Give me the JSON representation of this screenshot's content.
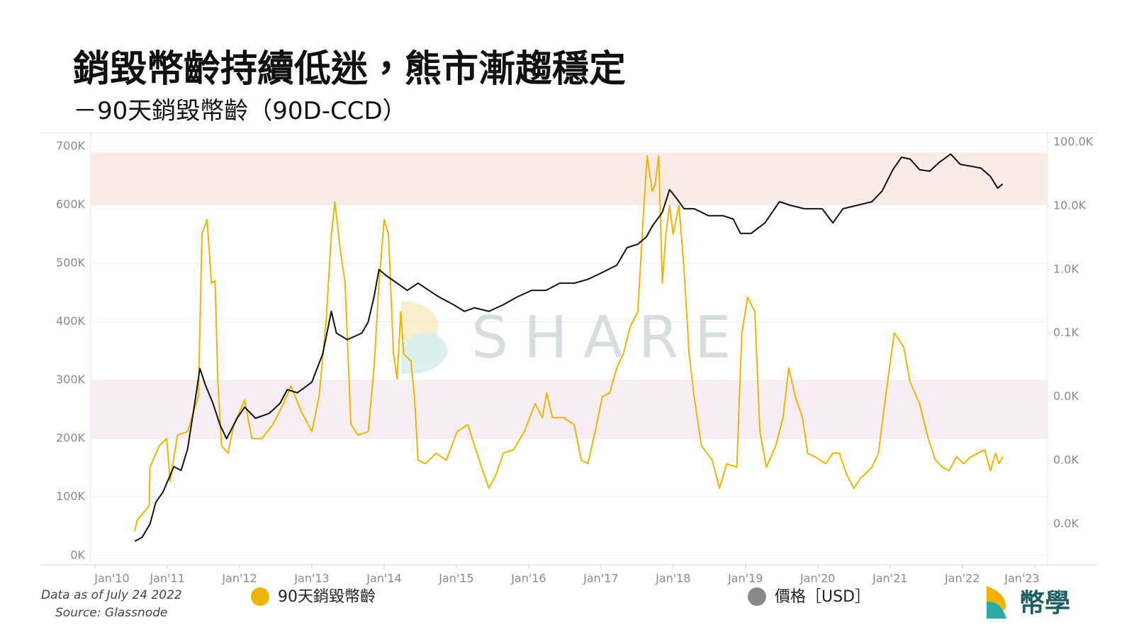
{
  "title": "銷毀幣齡持續低迷，熊市漸趨穩定",
  "subtitle": "－90天銷毀幣齡（90D-CCD）",
  "footnote": "Data as of July 24 2022",
  "source": "Source: Glassnode",
  "watermark": "SHARE",
  "logo": "幣學",
  "chart_data": {
    "type": "line",
    "xlim": [
      2009.94,
      2023.18
    ],
    "xticks": [
      {
        "value": 2010,
        "label": "Jan'10"
      },
      {
        "value": 2011,
        "label": "Jan'11"
      },
      {
        "value": 2012,
        "label": "Jan'12"
      },
      {
        "value": 2013,
        "label": "Jan'13"
      },
      {
        "value": 2014,
        "label": "Jan'14"
      },
      {
        "value": 2015,
        "label": "Jan'15"
      },
      {
        "value": 2016,
        "label": "Jan'16"
      },
      {
        "value": 2017,
        "label": "Jan'17"
      },
      {
        "value": 2018,
        "label": "Jan'18"
      },
      {
        "value": 2019,
        "label": "Jan'19"
      },
      {
        "value": 2020,
        "label": "Jan'20"
      },
      {
        "value": 2021,
        "label": "Jan'21"
      },
      {
        "value": 2022,
        "label": "Jan'22"
      },
      {
        "value": 2023,
        "label": "Jan'23"
      }
    ],
    "ylim": [
      -16000,
      723000
    ],
    "yticks": [
      {
        "value": 0,
        "label": "0K"
      },
      {
        "value": 100000,
        "label": "100K"
      },
      {
        "value": 200000,
        "label": "200K"
      },
      {
        "value": 300000,
        "label": "300K"
      },
      {
        "value": 400000,
        "label": "400K"
      },
      {
        "value": 500000,
        "label": "500K"
      },
      {
        "value": 600000,
        "label": "600K"
      },
      {
        "value": 700000,
        "label": "700K"
      }
    ],
    "y2lim": [
      0.023,
      139000
    ],
    "y2scale": "log",
    "y2ticks": [
      {
        "value": 100000,
        "label": "100.0K"
      },
      {
        "value": 10000,
        "label": "10.0K"
      },
      {
        "value": 1000,
        "label": "1.0K"
      },
      {
        "value": 100,
        "label": "0.1K"
      },
      {
        "value": 10,
        "label": "0.0K"
      },
      {
        "value": 1,
        "label": "0.0K"
      },
      {
        "value": 0.1,
        "label": "0.0K"
      }
    ],
    "grid": true,
    "bands": [
      {
        "from": 200000,
        "to": 300000,
        "color": "#f6eef3"
      },
      {
        "from": 600000,
        "to": 690000,
        "color": "#f9ece6"
      }
    ],
    "series": [
      {
        "name": "90天銷毀幣齡",
        "color": "#f0b400",
        "legend_marker_color": "#f0b400",
        "x": [
          2010.55,
          2010.58,
          2010.75,
          2010.76,
          2010.89,
          2010.99,
          2011.04,
          2011.14,
          2011.28,
          2011.43,
          2011.48,
          2011.55,
          2011.61,
          2011.66,
          2011.7,
          2011.75,
          2011.84,
          2011.92,
          2012.07,
          2012.17,
          2012.31,
          2012.46,
          2012.61,
          2012.71,
          2012.85,
          2013.0,
          2013.1,
          2013.2,
          2013.27,
          2013.32,
          2013.39,
          2013.46,
          2013.54,
          2013.64,
          2013.78,
          2013.86,
          2013.93,
          2014.0,
          2014.06,
          2014.13,
          2014.18,
          2014.23,
          2014.27,
          2014.37,
          2014.42,
          2014.47,
          2014.57,
          2014.72,
          2014.86,
          2015.01,
          2015.16,
          2015.25,
          2015.35,
          2015.45,
          2015.55,
          2015.65,
          2015.79,
          2015.94,
          2016.09,
          2016.19,
          2016.25,
          2016.33,
          2016.48,
          2016.63,
          2016.73,
          2016.82,
          2016.92,
          2017.02,
          2017.12,
          2017.22,
          2017.31,
          2017.41,
          2017.51,
          2017.59,
          2017.64,
          2017.71,
          2017.75,
          2017.8,
          2017.85,
          2017.9,
          2017.95,
          2018.0,
          2018.08,
          2018.15,
          2018.22,
          2018.29,
          2018.39,
          2018.54,
          2018.64,
          2018.74,
          2018.88,
          2018.95,
          2019.03,
          2019.13,
          2019.2,
          2019.29,
          2019.42,
          2019.52,
          2019.6,
          2019.69,
          2019.79,
          2019.86,
          2019.96,
          2020.11,
          2020.21,
          2020.3,
          2020.4,
          2020.5,
          2020.6,
          2020.75,
          2020.84,
          2020.94,
          2021.06,
          2021.19,
          2021.28,
          2021.41,
          2021.53,
          2021.63,
          2021.73,
          2021.82,
          2021.92,
          2022.02,
          2022.12,
          2022.22,
          2022.31,
          2022.39,
          2022.46,
          2022.51,
          2022.56
        ],
        "values": [
          42000,
          60000,
          85000,
          151000,
          188000,
          200000,
          127000,
          206000,
          212000,
          272000,
          550000,
          575000,
          466000,
          470000,
          296000,
          188000,
          175000,
          224000,
          266000,
          200000,
          200000,
          224000,
          260000,
          290000,
          248000,
          212000,
          272000,
          405000,
          550000,
          605000,
          526000,
          466000,
          224000,
          206000,
          212000,
          321000,
          466000,
          575000,
          550000,
          345000,
          302000,
          417000,
          345000,
          333000,
          272000,
          163000,
          157000,
          175000,
          163000,
          212000,
          224000,
          188000,
          151000,
          115000,
          139000,
          175000,
          181000,
          212000,
          260000,
          236000,
          278000,
          236000,
          236000,
          224000,
          163000,
          157000,
          212000,
          272000,
          278000,
          321000,
          345000,
          393000,
          417000,
          587000,
          684000,
          623000,
          635000,
          684000,
          466000,
          550000,
          599000,
          550000,
          599000,
          490000,
          345000,
          272000,
          188000,
          163000,
          115000,
          157000,
          151000,
          381000,
          442000,
          417000,
          212000,
          151000,
          188000,
          236000,
          321000,
          272000,
          236000,
          175000,
          169000,
          157000,
          175000,
          175000,
          139000,
          115000,
          133000,
          151000,
          175000,
          272000,
          381000,
          357000,
          296000,
          260000,
          200000,
          163000,
          151000,
          145000,
          169000,
          157000,
          169000,
          175000,
          181000,
          145000,
          175000,
          157000,
          169000
        ]
      },
      {
        "name": "價格［USD］",
        "color": "#111111",
        "legend_marker_color": "#888888",
        "axis": "y2",
        "x": [
          2010.55,
          2010.65,
          2010.76,
          2010.84,
          2010.94,
          2011.09,
          2011.19,
          2011.28,
          2011.38,
          2011.45,
          2011.53,
          2011.63,
          2011.73,
          2011.82,
          2011.97,
          2012.07,
          2012.22,
          2012.41,
          2012.56,
          2012.66,
          2012.8,
          2013.0,
          2013.15,
          2013.27,
          2013.34,
          2013.49,
          2013.69,
          2013.78,
          2013.86,
          2013.93,
          2014.03,
          2014.18,
          2014.32,
          2014.47,
          2014.62,
          2014.76,
          2014.96,
          2015.11,
          2015.25,
          2015.45,
          2015.65,
          2015.84,
          2016.04,
          2016.24,
          2016.43,
          2016.63,
          2016.82,
          2017.02,
          2017.22,
          2017.36,
          2017.51,
          2017.63,
          2017.71,
          2017.85,
          2017.95,
          2018.05,
          2018.15,
          2018.29,
          2018.49,
          2018.69,
          2018.83,
          2018.93,
          2019.08,
          2019.27,
          2019.47,
          2019.62,
          2019.81,
          2020.06,
          2020.21,
          2020.35,
          2020.55,
          2020.75,
          2020.89,
          2021.04,
          2021.16,
          2021.28,
          2021.41,
          2021.55,
          2021.68,
          2021.84,
          2021.97,
          2022.12,
          2022.26,
          2022.39,
          2022.49,
          2022.56
        ],
        "values": [
          0.054,
          0.062,
          0.1,
          0.22,
          0.32,
          0.8,
          0.7,
          1.5,
          8,
          28,
          15,
          8,
          3.6,
          2.2,
          4.7,
          6.9,
          4.6,
          5.5,
          7.9,
          13,
          11.6,
          17,
          47,
          220,
          100,
          79,
          100,
          150,
          370,
          1000,
          800,
          610,
          470,
          610,
          470,
          370,
          280,
          220,
          250,
          220,
          280,
          370,
          470,
          470,
          610,
          610,
          700,
          900,
          1170,
          2200,
          2500,
          3250,
          4800,
          7900,
          18000,
          13000,
          9000,
          9000,
          7000,
          7000,
          6200,
          3700,
          3700,
          5400,
          11600,
          10200,
          9000,
          9000,
          5400,
          9000,
          10200,
          11600,
          17000,
          37000,
          58000,
          54000,
          37000,
          35000,
          48000,
          65000,
          45000,
          42000,
          39000,
          29000,
          19000,
          22000
        ]
      }
    ]
  }
}
